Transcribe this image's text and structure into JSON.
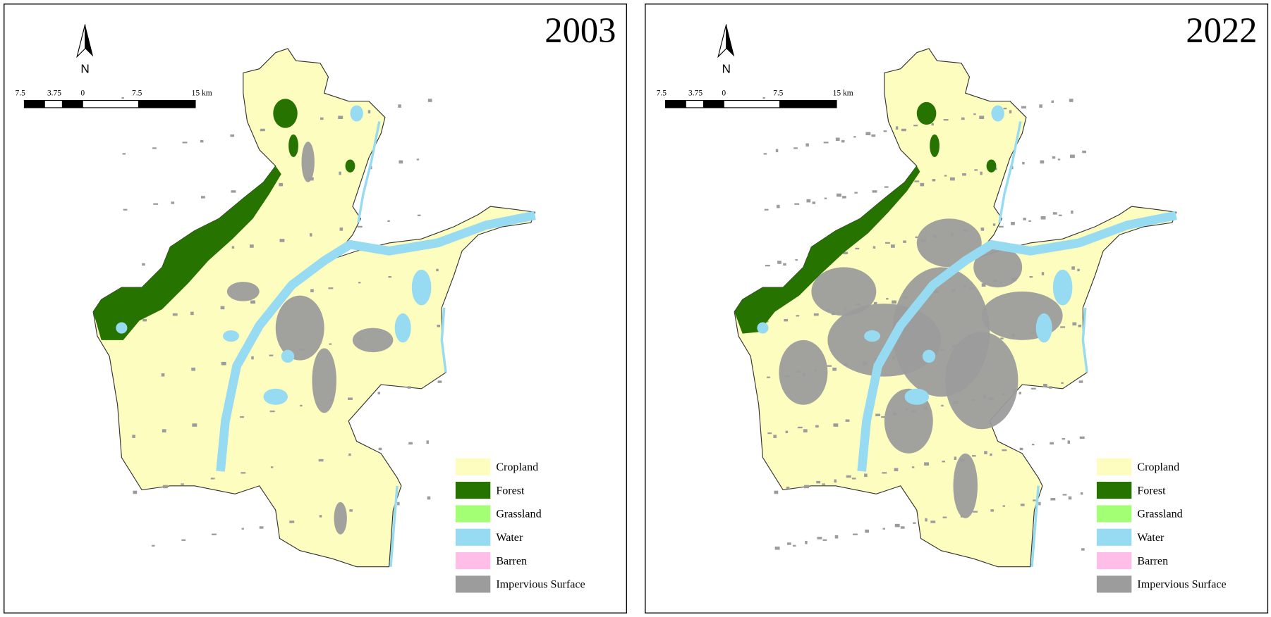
{
  "panels": [
    {
      "year": "2003"
    },
    {
      "year": "2022"
    }
  ],
  "north_label": "N",
  "scale_bar": {
    "labels": [
      "7.5",
      "3.75",
      "0",
      "7.5",
      "15 km"
    ]
  },
  "legend": [
    {
      "label": "Cropland",
      "color": "#fdfdc0"
    },
    {
      "label": "Forest",
      "color": "#267300"
    },
    {
      "label": "Grassland",
      "color": "#a3ff73"
    },
    {
      "label": "Water",
      "color": "#97dbf2"
    },
    {
      "label": "Barren",
      "color": "#ffbee8"
    },
    {
      "label": "Impervious Surface",
      "color": "#9c9c9c"
    }
  ]
}
